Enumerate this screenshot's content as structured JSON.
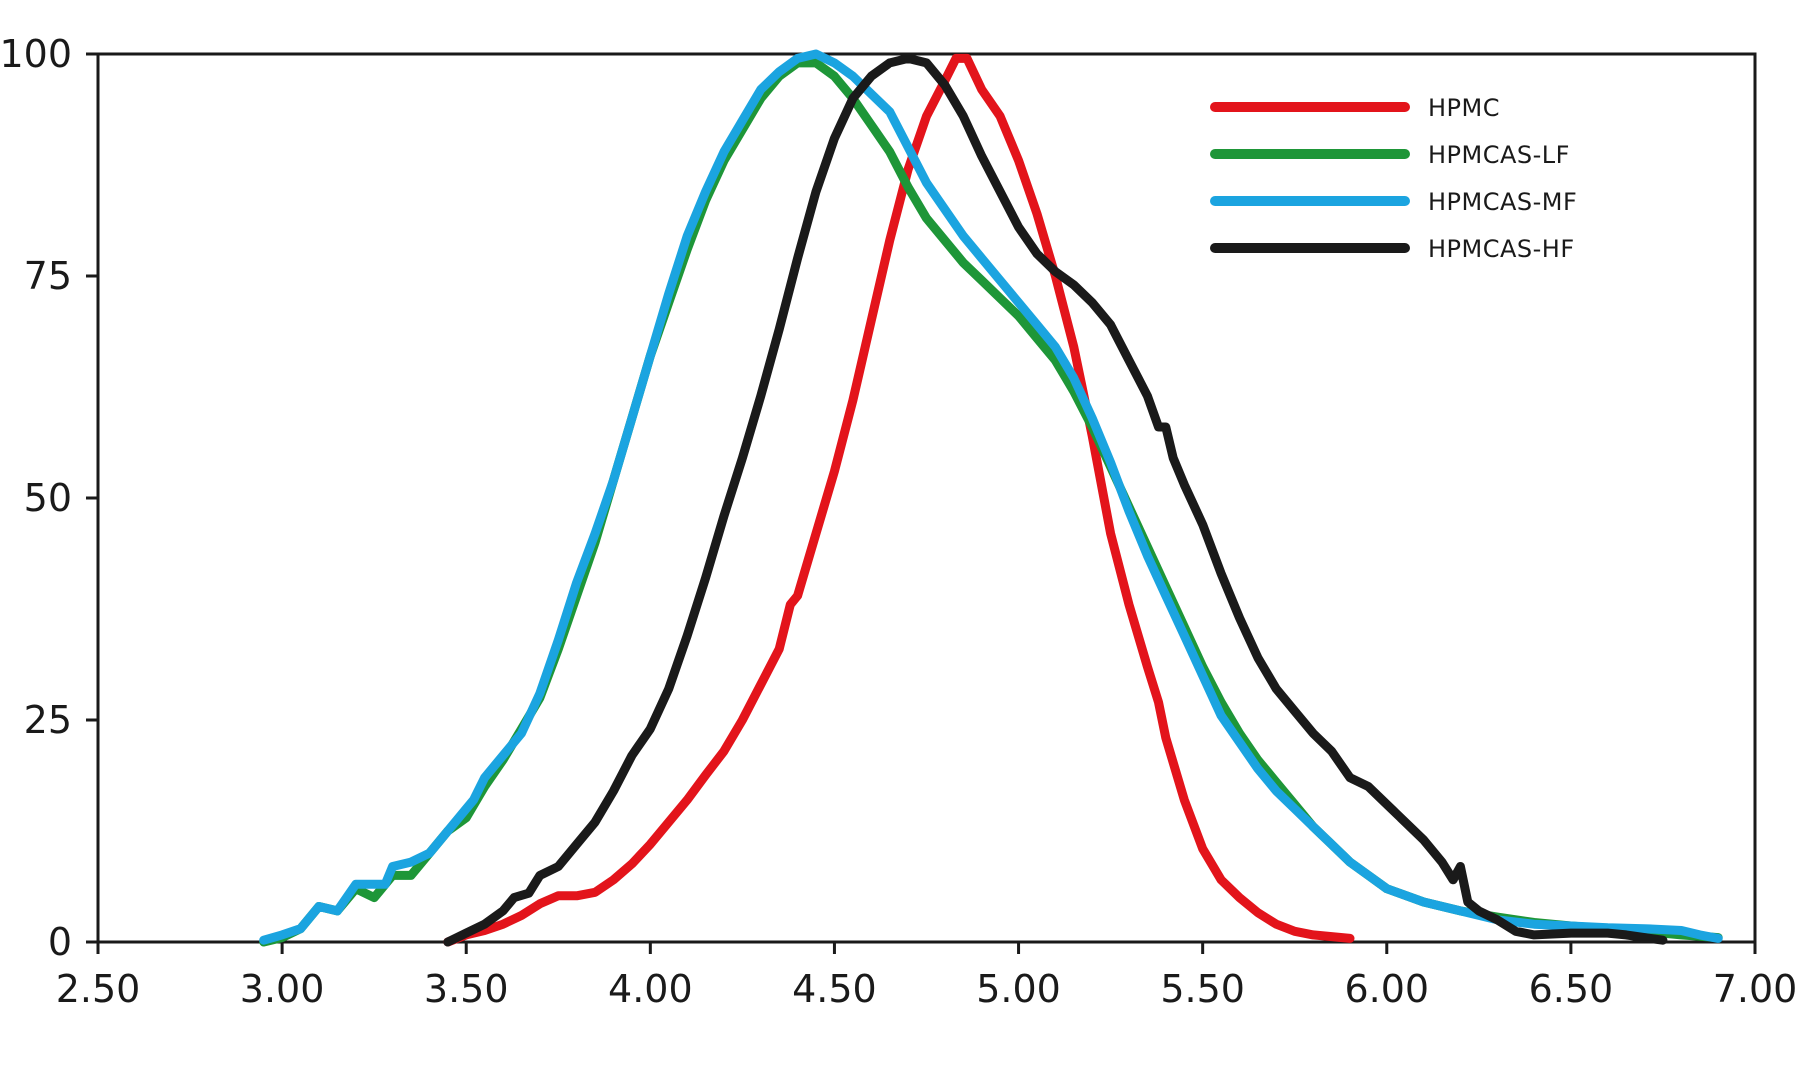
{
  "chart_data": {
    "type": "line",
    "title": "",
    "xlabel": "",
    "ylabel": "",
    "xlim": [
      2.5,
      7.0
    ],
    "ylim": [
      0,
      100
    ],
    "x_ticks": [
      2.5,
      3.0,
      3.5,
      4.0,
      4.5,
      5.0,
      5.5,
      6.0,
      6.5,
      7.0
    ],
    "x_tick_labels": [
      "2.50",
      "3.00",
      "3.50",
      "4.00",
      "4.50",
      "5.00",
      "5.50",
      "6.00",
      "6.50",
      "7.00"
    ],
    "y_ticks": [
      0,
      25,
      50,
      75,
      100
    ],
    "y_tick_labels": [
      "0",
      "25",
      "50",
      "75",
      "100"
    ],
    "grid": false,
    "legend_position": "top-right",
    "series": [
      {
        "name": "HPMC",
        "color": "#e3141b",
        "points": [
          [
            3.45,
            0
          ],
          [
            3.5,
            0.8
          ],
          [
            3.55,
            1.3
          ],
          [
            3.6,
            2.0
          ],
          [
            3.65,
            3.0
          ],
          [
            3.7,
            4.3
          ],
          [
            3.75,
            5.2
          ],
          [
            3.8,
            5.2
          ],
          [
            3.85,
            5.6
          ],
          [
            3.9,
            7.0
          ],
          [
            3.95,
            8.8
          ],
          [
            4.0,
            11.0
          ],
          [
            4.05,
            13.5
          ],
          [
            4.1,
            16.0
          ],
          [
            4.15,
            18.8
          ],
          [
            4.2,
            21.5
          ],
          [
            4.25,
            25.0
          ],
          [
            4.3,
            29.0
          ],
          [
            4.35,
            33.0
          ],
          [
            4.38,
            38.0
          ],
          [
            4.4,
            39.0
          ],
          [
            4.45,
            46.0
          ],
          [
            4.5,
            53.0
          ],
          [
            4.55,
            61.0
          ],
          [
            4.6,
            70.0
          ],
          [
            4.65,
            79.0
          ],
          [
            4.7,
            87.0
          ],
          [
            4.75,
            93.0
          ],
          [
            4.8,
            97.0
          ],
          [
            4.83,
            99.5
          ],
          [
            4.86,
            99.5
          ],
          [
            4.9,
            96.0
          ],
          [
            4.95,
            93.0
          ],
          [
            5.0,
            88.0
          ],
          [
            5.05,
            82.0
          ],
          [
            5.1,
            75.0
          ],
          [
            5.15,
            67.0
          ],
          [
            5.2,
            57.0
          ],
          [
            5.25,
            46.0
          ],
          [
            5.3,
            38.0
          ],
          [
            5.35,
            31.0
          ],
          [
            5.38,
            27.0
          ],
          [
            5.4,
            23.0
          ],
          [
            5.45,
            16.0
          ],
          [
            5.5,
            10.5
          ],
          [
            5.55,
            7.0
          ],
          [
            5.6,
            5.0
          ],
          [
            5.65,
            3.3
          ],
          [
            5.7,
            2.0
          ],
          [
            5.75,
            1.2
          ],
          [
            5.8,
            0.8
          ],
          [
            5.9,
            0.4
          ]
        ]
      },
      {
        "name": "HPMCAS-LF",
        "color": "#1e9638",
        "points": [
          [
            2.95,
            0
          ],
          [
            3.0,
            0.5
          ],
          [
            3.05,
            1.5
          ],
          [
            3.1,
            4.0
          ],
          [
            3.15,
            3.5
          ],
          [
            3.2,
            6.0
          ],
          [
            3.25,
            5.0
          ],
          [
            3.3,
            7.5
          ],
          [
            3.35,
            7.5
          ],
          [
            3.4,
            10.0
          ],
          [
            3.45,
            12.5
          ],
          [
            3.5,
            14.0
          ],
          [
            3.55,
            17.5
          ],
          [
            3.6,
            20.5
          ],
          [
            3.65,
            24.0
          ],
          [
            3.7,
            27.5
          ],
          [
            3.75,
            33.0
          ],
          [
            3.8,
            39.0
          ],
          [
            3.85,
            45.0
          ],
          [
            3.9,
            52.0
          ],
          [
            3.95,
            59.0
          ],
          [
            4.0,
            66.0
          ],
          [
            4.05,
            72.0
          ],
          [
            4.1,
            78.0
          ],
          [
            4.15,
            83.5
          ],
          [
            4.2,
            88.0
          ],
          [
            4.25,
            91.5
          ],
          [
            4.3,
            95.0
          ],
          [
            4.35,
            97.5
          ],
          [
            4.4,
            99.0
          ],
          [
            4.45,
            99.0
          ],
          [
            4.5,
            97.5
          ],
          [
            4.55,
            95.0
          ],
          [
            4.6,
            92.0
          ],
          [
            4.65,
            89.0
          ],
          [
            4.7,
            85.0
          ],
          [
            4.75,
            81.5
          ],
          [
            4.8,
            79.0
          ],
          [
            4.85,
            76.5
          ],
          [
            4.9,
            74.5
          ],
          [
            4.95,
            72.5
          ],
          [
            5.0,
            70.5
          ],
          [
            5.05,
            68.0
          ],
          [
            5.1,
            65.5
          ],
          [
            5.15,
            62.0
          ],
          [
            5.2,
            58.0
          ],
          [
            5.25,
            53.5
          ],
          [
            5.3,
            49.0
          ],
          [
            5.35,
            44.5
          ],
          [
            5.4,
            40.0
          ],
          [
            5.45,
            35.5
          ],
          [
            5.5,
            31.0
          ],
          [
            5.55,
            27.0
          ],
          [
            5.6,
            23.5
          ],
          [
            5.65,
            20.5
          ],
          [
            5.7,
            18.0
          ],
          [
            5.75,
            15.5
          ],
          [
            5.8,
            13.0
          ],
          [
            5.85,
            11.0
          ],
          [
            5.9,
            9.0
          ],
          [
            5.95,
            7.5
          ],
          [
            6.0,
            6.0
          ],
          [
            6.1,
            4.5
          ],
          [
            6.2,
            3.5
          ],
          [
            6.3,
            2.8
          ],
          [
            6.4,
            2.2
          ],
          [
            6.5,
            1.8
          ],
          [
            6.6,
            1.5
          ],
          [
            6.7,
            1.2
          ],
          [
            6.8,
            0.8
          ],
          [
            6.9,
            0.5
          ]
        ]
      },
      {
        "name": "HPMCAS-MF",
        "color": "#1ba4e0",
        "points": [
          [
            2.95,
            0.2
          ],
          [
            3.0,
            0.8
          ],
          [
            3.05,
            1.5
          ],
          [
            3.1,
            4.0
          ],
          [
            3.15,
            3.5
          ],
          [
            3.2,
            6.5
          ],
          [
            3.25,
            6.5
          ],
          [
            3.28,
            6.5
          ],
          [
            3.3,
            8.5
          ],
          [
            3.35,
            9.0
          ],
          [
            3.4,
            10.0
          ],
          [
            3.45,
            12.5
          ],
          [
            3.5,
            15.0
          ],
          [
            3.52,
            16.0
          ],
          [
            3.55,
            18.5
          ],
          [
            3.6,
            21.0
          ],
          [
            3.65,
            23.5
          ],
          [
            3.7,
            28.0
          ],
          [
            3.75,
            34.0
          ],
          [
            3.8,
            40.5
          ],
          [
            3.85,
            46.0
          ],
          [
            3.9,
            52.0
          ],
          [
            3.95,
            59.0
          ],
          [
            4.0,
            66.0
          ],
          [
            4.05,
            73.0
          ],
          [
            4.1,
            79.5
          ],
          [
            4.15,
            84.5
          ],
          [
            4.2,
            89.0
          ],
          [
            4.25,
            92.5
          ],
          [
            4.3,
            96.0
          ],
          [
            4.35,
            98.0
          ],
          [
            4.4,
            99.5
          ],
          [
            4.45,
            100.0
          ],
          [
            4.5,
            99.0
          ],
          [
            4.55,
            97.5
          ],
          [
            4.6,
            95.5
          ],
          [
            4.65,
            93.5
          ],
          [
            4.7,
            89.5
          ],
          [
            4.75,
            85.5
          ],
          [
            4.8,
            82.5
          ],
          [
            4.85,
            79.5
          ],
          [
            4.9,
            77.0
          ],
          [
            4.95,
            74.5
          ],
          [
            5.0,
            72.0
          ],
          [
            5.05,
            69.5
          ],
          [
            5.1,
            67.0
          ],
          [
            5.15,
            63.5
          ],
          [
            5.2,
            59.0
          ],
          [
            5.25,
            54.0
          ],
          [
            5.3,
            48.5
          ],
          [
            5.35,
            43.5
          ],
          [
            5.4,
            39.0
          ],
          [
            5.45,
            34.5
          ],
          [
            5.5,
            30.0
          ],
          [
            5.55,
            25.5
          ],
          [
            5.6,
            22.5
          ],
          [
            5.65,
            19.5
          ],
          [
            5.7,
            17.0
          ],
          [
            5.75,
            15.0
          ],
          [
            5.8,
            13.0
          ],
          [
            5.85,
            11.0
          ],
          [
            5.9,
            9.0
          ],
          [
            5.95,
            7.5
          ],
          [
            6.0,
            6.0
          ],
          [
            6.1,
            4.5
          ],
          [
            6.2,
            3.5
          ],
          [
            6.3,
            2.5
          ],
          [
            6.4,
            2.0
          ],
          [
            6.5,
            1.8
          ],
          [
            6.6,
            1.6
          ],
          [
            6.7,
            1.5
          ],
          [
            6.8,
            1.3
          ],
          [
            6.85,
            0.8
          ],
          [
            6.9,
            0.4
          ]
        ]
      },
      {
        "name": "HPMCAS-HF",
        "color": "#1a1a1a",
        "points": [
          [
            3.45,
            0
          ],
          [
            3.5,
            1.0
          ],
          [
            3.55,
            2.0
          ],
          [
            3.6,
            3.5
          ],
          [
            3.63,
            5.0
          ],
          [
            3.67,
            5.5
          ],
          [
            3.7,
            7.5
          ],
          [
            3.75,
            8.5
          ],
          [
            3.8,
            11.0
          ],
          [
            3.85,
            13.5
          ],
          [
            3.9,
            17.0
          ],
          [
            3.95,
            21.0
          ],
          [
            4.0,
            24.0
          ],
          [
            4.05,
            28.5
          ],
          [
            4.1,
            34.5
          ],
          [
            4.15,
            41.0
          ],
          [
            4.2,
            48.0
          ],
          [
            4.25,
            54.5
          ],
          [
            4.3,
            61.5
          ],
          [
            4.35,
            69.0
          ],
          [
            4.4,
            77.0
          ],
          [
            4.45,
            84.5
          ],
          [
            4.5,
            90.5
          ],
          [
            4.55,
            95.0
          ],
          [
            4.6,
            97.5
          ],
          [
            4.65,
            99.0
          ],
          [
            4.7,
            99.5
          ],
          [
            4.75,
            99.0
          ],
          [
            4.8,
            96.5
          ],
          [
            4.85,
            93.0
          ],
          [
            4.9,
            88.5
          ],
          [
            4.95,
            84.5
          ],
          [
            5.0,
            80.5
          ],
          [
            5.05,
            77.5
          ],
          [
            5.1,
            75.5
          ],
          [
            5.15,
            74.0
          ],
          [
            5.2,
            72.0
          ],
          [
            5.25,
            69.5
          ],
          [
            5.3,
            65.5
          ],
          [
            5.35,
            61.5
          ],
          [
            5.38,
            58.0
          ],
          [
            5.4,
            58.0
          ],
          [
            5.42,
            54.5
          ],
          [
            5.45,
            51.5
          ],
          [
            5.5,
            47.0
          ],
          [
            5.55,
            41.5
          ],
          [
            5.6,
            36.5
          ],
          [
            5.65,
            32.0
          ],
          [
            5.7,
            28.5
          ],
          [
            5.75,
            26.0
          ],
          [
            5.8,
            23.5
          ],
          [
            5.85,
            21.5
          ],
          [
            5.9,
            18.5
          ],
          [
            5.95,
            17.5
          ],
          [
            6.0,
            15.5
          ],
          [
            6.05,
            13.5
          ],
          [
            6.1,
            11.5
          ],
          [
            6.15,
            9.0
          ],
          [
            6.18,
            7.0
          ],
          [
            6.2,
            8.5
          ],
          [
            6.22,
            4.5
          ],
          [
            6.25,
            3.5
          ],
          [
            6.3,
            2.5
          ],
          [
            6.35,
            1.2
          ],
          [
            6.4,
            0.8
          ],
          [
            6.5,
            1.0
          ],
          [
            6.6,
            1.0
          ],
          [
            6.65,
            0.8
          ],
          [
            6.7,
            0.5
          ],
          [
            6.75,
            0.2
          ]
        ]
      }
    ]
  }
}
